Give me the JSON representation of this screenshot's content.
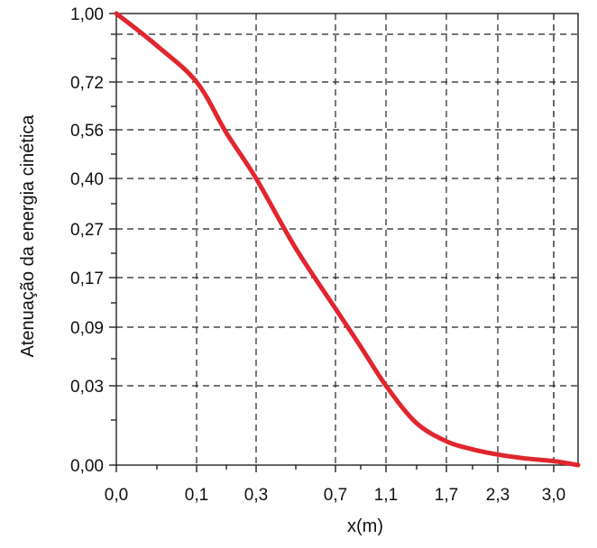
{
  "chart_data": {
    "type": "line",
    "title": "",
    "xlabel": "x(m)",
    "ylabel": "Atenuação da energia cinética",
    "grid": true,
    "legend": "none",
    "x_ticks": [
      {
        "value": 0.0,
        "label": "0,0"
      },
      {
        "value": 0.1,
        "label": "0,1"
      },
      {
        "value": 0.3,
        "label": "0,3"
      },
      {
        "value": 0.7,
        "label": "0,7"
      },
      {
        "value": 1.1,
        "label": "1,1"
      },
      {
        "value": 1.7,
        "label": "1,7"
      },
      {
        "value": 2.3,
        "label": "2,3"
      },
      {
        "value": 3.0,
        "label": "3,0"
      }
    ],
    "y_ticks": [
      {
        "value": 1.0,
        "label": "1,00"
      },
      {
        "value": 0.72,
        "label": "0,72"
      },
      {
        "value": 0.56,
        "label": "0,56"
      },
      {
        "value": 0.4,
        "label": "0,40"
      },
      {
        "value": 0.27,
        "label": "0,27"
      },
      {
        "value": 0.17,
        "label": "0,17"
      },
      {
        "value": 0.09,
        "label": "0,09"
      },
      {
        "value": 0.03,
        "label": "0,03"
      },
      {
        "value": 0.0,
        "label": "0,00"
      }
    ],
    "series": [
      {
        "color": "#e0262e",
        "x": [
          0.0,
          0.05,
          0.1,
          0.2,
          0.3,
          0.5,
          0.7,
          0.9,
          1.1,
          1.4,
          1.7,
          2.0,
          2.3,
          2.65,
          3.0,
          3.3
        ],
        "y": [
          1.0,
          0.87,
          0.72,
          0.55,
          0.4,
          0.23,
          0.12,
          0.07,
          0.03,
          0.016,
          0.009,
          0.006,
          0.004,
          0.0025,
          0.0015,
          0.0
        ]
      }
    ]
  }
}
